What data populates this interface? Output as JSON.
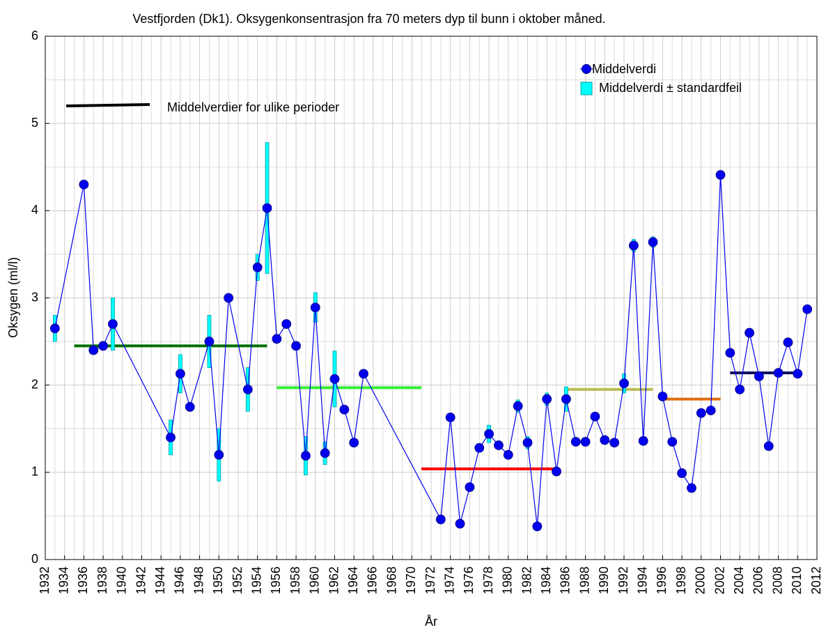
{
  "chart_data": {
    "type": "line",
    "title": "Vestfjorden (Dk1). Oksygenkonsentrasjon fra 70 meters dyp til bunn i oktober måned.",
    "xlabel": "År",
    "ylabel": "Oksygen (ml/l)",
    "xlim": [
      1932,
      2012
    ],
    "xticks": [
      1932,
      1934,
      1936,
      1938,
      1940,
      1942,
      1944,
      1946,
      1948,
      1950,
      1952,
      1954,
      1956,
      1958,
      1960,
      1962,
      1964,
      1966,
      1968,
      1970,
      1972,
      1974,
      1976,
      1978,
      1980,
      1982,
      1984,
      1986,
      1988,
      1990,
      1992,
      1994,
      1996,
      1998,
      2000,
      2002,
      2004,
      2006,
      2008,
      2010,
      2012
    ],
    "ylim": [
      0,
      6
    ],
    "yticks": [
      0,
      1,
      2,
      3,
      4,
      5,
      6
    ],
    "grid": true,
    "series": [
      {
        "name": "Middelverdi",
        "color": "#0000ee",
        "error_name": "Middelverdi ± standardfeil",
        "error_color": "#00ffff",
        "x": [
          1933,
          1936,
          1937,
          1938,
          1939,
          1945,
          1946,
          1947,
          1949,
          1950,
          1951,
          1953,
          1954,
          1955,
          1956,
          1957,
          1958,
          1959,
          1960,
          1961,
          1962,
          1963,
          1964,
          1965,
          1973,
          1974,
          1975,
          1976,
          1977,
          1978,
          1979,
          1980,
          1981,
          1982,
          1983,
          1984,
          1985,
          1986,
          1987,
          1988,
          1989,
          1990,
          1991,
          1992,
          1993,
          1994,
          1995,
          1996,
          1997,
          1998,
          1999,
          2000,
          2001,
          2002,
          2003,
          2004,
          2005,
          2006,
          2007,
          2008,
          2009,
          2010,
          2011
        ],
        "values": [
          2.65,
          4.3,
          2.4,
          2.45,
          2.7,
          1.4,
          2.13,
          1.75,
          2.5,
          1.2,
          3.0,
          1.95,
          3.35,
          4.03,
          2.53,
          2.7,
          2.45,
          1.19,
          2.89,
          1.22,
          2.07,
          1.72,
          1.34,
          2.13,
          0.46,
          1.63,
          0.41,
          0.83,
          1.28,
          1.44,
          1.31,
          1.2,
          1.76,
          1.34,
          0.38,
          1.84,
          1.01,
          1.84,
          1.35,
          1.35,
          1.64,
          1.37,
          1.34,
          2.02,
          3.6,
          1.36,
          3.64,
          1.87,
          1.35,
          0.99,
          0.82,
          1.68,
          1.71,
          4.41,
          2.37,
          1.95,
          2.6,
          2.1,
          1.3,
          2.14,
          2.49,
          2.13,
          2.87
        ],
        "errors": [
          0.15,
          null,
          null,
          null,
          0.3,
          0.2,
          0.22,
          null,
          0.3,
          0.3,
          null,
          0.25,
          0.15,
          0.75,
          null,
          null,
          null,
          0.22,
          0.17,
          0.13,
          0.32,
          null,
          null,
          null,
          null,
          null,
          null,
          null,
          null,
          0.1,
          null,
          null,
          0.07,
          0.07,
          null,
          0.07,
          null,
          0.14,
          null,
          null,
          null,
          null,
          null,
          0.11,
          0.07,
          null,
          0.06,
          null,
          null,
          null,
          null,
          null,
          null,
          null,
          null,
          null,
          null,
          null,
          null,
          null,
          null,
          null,
          null
        ]
      }
    ],
    "periods": {
      "name": "Middelverdier for ulike perioder",
      "color": "#000000",
      "segments": [
        {
          "x": [
            1935,
            1955
          ],
          "value": 2.45,
          "color": "#007000"
        },
        {
          "x": [
            1956,
            1971
          ],
          "value": 1.97,
          "color": "#33ee33"
        },
        {
          "x": [
            1971,
            1985
          ],
          "value": 1.04,
          "color": "#ff0000"
        },
        {
          "x": [
            1986,
            1995
          ],
          "value": 1.95,
          "color": "#bbbb55"
        },
        {
          "x": [
            1996,
            2002
          ],
          "value": 1.84,
          "color": "#dd7010"
        },
        {
          "x": [
            2003,
            2010
          ],
          "value": 2.14,
          "color": "#101060"
        }
      ]
    }
  }
}
